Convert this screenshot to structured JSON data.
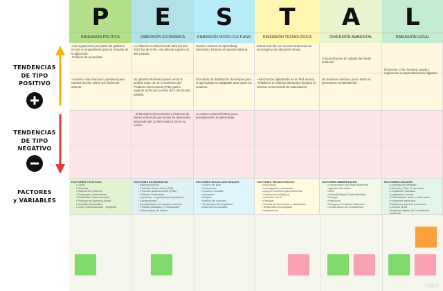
{
  "header": {
    "columns": [
      {
        "letter": "P",
        "label": "DIMENSIÓN POLÍTICA",
        "color": "#b4e08b"
      },
      {
        "letter": "E",
        "label": "DIMENSIÓN ECONÓMICA",
        "color": "#b2e2e8"
      },
      {
        "letter": "S",
        "label": "DIMENSIÓN SOCIO-CULTURAL",
        "color": "#b6ebf7"
      },
      {
        "letter": "T",
        "label": "DIMENSIÓN TECNOLÓGICA",
        "color": "#fff6b1"
      },
      {
        "letter": "A",
        "label": "DIMENSIÓN AMBIENTAL",
        "color": "#e8f4cd"
      },
      {
        "letter": "L",
        "label": "DIMENSIÓN LEGAL",
        "color": "#c3ecd0"
      }
    ]
  },
  "rows": {
    "positive": {
      "label_line1": "TENDENCIAS",
      "label_line2": "DE TIPO",
      "label_line3": "POSITIVO",
      "icon": "plus-icon",
      "arrow_color": "#f2b600",
      "cell_color": "#fff8de"
    },
    "negative": {
      "label_line1": "TENDENCIAS",
      "label_line2": "DE TIPO",
      "label_line3": "NEGATIVO",
      "icon": "minus-icon",
      "arrow_color": "#e53935",
      "cell_color": "#fde5ea"
    },
    "factors": {
      "label_line1": "FACTORES",
      "label_line2": "y VARIABLES"
    }
  },
  "positive_top": [
    "-Las regulaciones por parte del gobierno no son un impedimento para la creación de la aplicación.\n-Políticas de privacidad.",
    "La Inflación en Bolivia hasta abril del año 2022 fue de 0.9%, una décima superior al año pasado.",
    "Nuestro sistema de aprendizaje interactivo, fomenta el aumento laboral.",
    "Estamos al día con nuevas tendencias de tecnología y de educación virtual.",
    "",
    ""
  ],
  "positive_mid": [
    "",
    "",
    "",
    "",
    "Concientizamos el cuidado del medio ambiente.",
    "El decreto 1793, fomenta, ayuda y reglamenta a emprendimientos digitales."
  ],
  "positive_bottom": [
    "-Acceder a las licencias y permisos para nuestra función online son fáciles de obtener.",
    "-El gobierno Boliviano prevé cerrar la gestión 2021 con un crecimiento del Producto Interno Bruto (PIB) igual o superior al 5% por encima del 4.4% de año pasado.",
    "El modelo de distribución de tiempos para el aprendizaje es adaptable para todos los usuarios.",
    "• Información digitalizada es de fácil acceso.\n•Añadimos un sistema interactivo (juegos) al sistema convencional de capacitación.",
    "No tenemos residuos, por lo tanto no generamos contaminación.",
    ""
  ],
  "negative_top": [
    "",
    "- El Ministerio de Economía y Finanzas de Bolivia reformuló que la tasa de desempleo descendió del 11.96% hasta 5.2% en la nación.",
    "La cultura centennial tiene poca predisposición al aprendizaje.",
    "",
    "",
    ""
  ],
  "factors": [
    {
      "title": "FACTORES POLÍTICOS:",
      "items": [
        "Leyes",
        "Decretos",
        "Sistema de Gobierno",
        "Directrices o Normativas",
        "Estabilidad Gubernamental",
        "Políticas de Gobierno Actual",
        "Acuerdos Sectoriales",
        "Leyes Internacionales - Regional"
      ]
    },
    {
      "title": "FACTORES ECONÓMICOS:",
      "items": [
        "Macroeconomía",
        "Producto Interno Bruto (PIB)",
        "Producto Nacional Bruto (PNB)",
        "Políticas Financieras",
        "Impuestos - regulaciones Impositivas",
        "Subvenciones",
        "Accesibilidad a los apoyos inversión",
        "Políticas salariales y Contratación",
        "Tasas y tipos de Interés"
      ]
    },
    {
      "title": "FACTORES SOCIO-CULTURALES:",
      "items": [
        "Cultura del país",
        "Costumbres",
        "Factores Sociales",
        "Educación",
        "Religión",
        "Hábitos de consumo",
        "Tendencias Demográficas",
        "Movimientos sociales"
      ]
    },
    {
      "title": "FACTORES TECNOLÓGICOS:",
      "items": [
        "Innovación",
        "Investigación y desarrollo",
        "Apoyo e incentivo gubernamental",
        "Cambios tecnológicos",
        "Inversión en I+D",
        "Energías",
        "Formas de Producción y distribución",
        "Tendencias tecnológicas",
        "Implantación"
      ]
    },
    {
      "title": "FACTORES AMBIENTALES:",
      "items": [
        "Conservación del Medio Ambiente",
        "Agendas Mundiales",
        "ODS",
        "Sostenibilidad y Sustentabilidad",
        "Energía",
        "Protección",
        "Riesgos y Desastres Naturales",
        "Conservación de ecosistemas"
      ]
    },
    {
      "title": "FACTORES LEGALES:",
      "items": [
        "Licencias de actividad",
        "Horarios y Días Comerciales",
        "Legislación Sanitaria",
        "Legislación Laboral",
        "Privacidad de datos e información",
        "Propiedad Intelectual",
        "Patentes y leyes de protección",
        "Compra venta",
        "Aspectos legales de Constitución Comercial"
      ]
    }
  ],
  "stickies": [
    {
      "color": "#7fd96b"
    },
    {
      "color": "#7fd96b"
    },
    {
      "color": "#f8a2b1"
    },
    {
      "color": "#7fd96b"
    },
    {
      "color": "#f8a2b1"
    },
    {
      "color": "#7fd96b"
    },
    {
      "color": "#f8a2b1"
    },
    {
      "color": "#f9a13c"
    }
  ],
  "watermark": "miro"
}
